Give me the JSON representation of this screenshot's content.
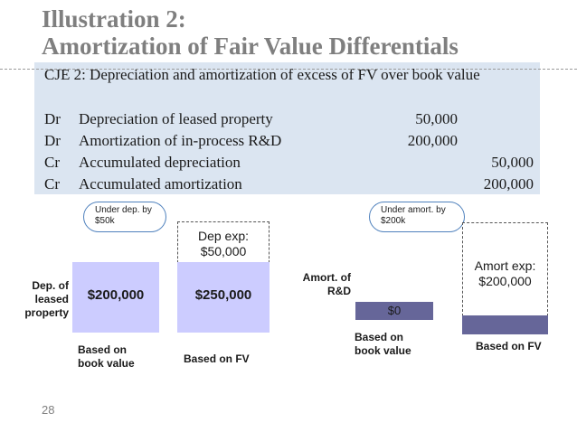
{
  "title": {
    "line1": "Illustration 2:",
    "line2": "Amortization of Fair Value Differentials"
  },
  "cje": {
    "heading": "CJE 2: Depreciation and amortization of excess of FV over book value",
    "entries": [
      {
        "dc": "Dr",
        "account": "Depreciation of leased property",
        "debit": "50,000",
        "credit": ""
      },
      {
        "dc": "Dr",
        "account": "Amortization of in-process R&D",
        "debit": "200,000",
        "credit": ""
      },
      {
        "dc": "Cr",
        "account": "Accumulated depreciation",
        "debit": "",
        "credit": "50,000"
      },
      {
        "dc": "Cr",
        "account": "Accumulated amortization",
        "debit": "",
        "credit": "200,000"
      }
    ]
  },
  "left_diagram": {
    "label_line1": "Dep. of",
    "label_line2": "leased",
    "label_line3": "property",
    "callout_line1": "Under dep. by",
    "callout_line2": "$50k",
    "book_value": "$200,000",
    "fair_value": "$250,000",
    "exp_line1": "Dep exp:",
    "exp_line2": "$50,000",
    "book_caption_line1": "Based on",
    "book_caption_line2": "book value",
    "fv_caption": "Based on FV"
  },
  "right_diagram": {
    "label_line1": "Amort. of",
    "label_line2": "R&D",
    "callout_line1": "Under amort. by",
    "callout_line2": "$200k",
    "book_value": "$0",
    "exp_line1": "Amort exp:",
    "exp_line2": "$200,000",
    "book_caption_line1": "Based on",
    "book_caption_line2": "book value",
    "fv_caption": "Based on FV"
  },
  "colors": {
    "title": "#7f7f7f",
    "box_fill": "#dbe5f1",
    "bar_light": "#ccccff",
    "bar_dark": "#666699",
    "callout_border": "#4f81bd"
  },
  "page_number": "28"
}
